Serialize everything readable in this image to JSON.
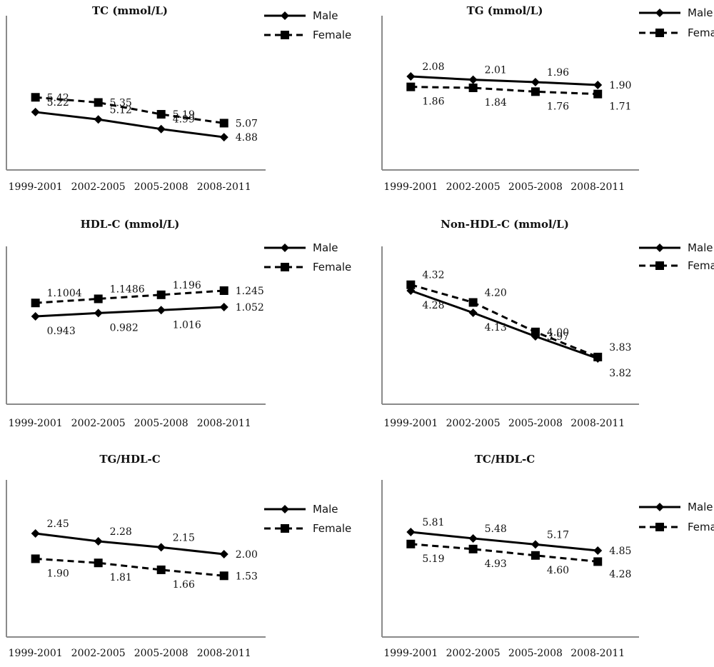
{
  "legend": {
    "male": "Male",
    "female": "Female"
  },
  "colors": {
    "line": "#000000",
    "axis": "#8a8a8a"
  },
  "chart_data": [
    {
      "type": "line",
      "title": "TC (mmol/L)",
      "categories": [
        "1999-2001",
        "2002-2005",
        "2005-2008",
        "2008-2011"
      ],
      "series": [
        {
          "name": "Male",
          "values": [
            5.22,
            5.12,
            4.99,
            4.88
          ],
          "labels": [
            "5.22",
            "5.12",
            "4.99",
            "4.88"
          ],
          "style": "solid",
          "marker": "diamond"
        },
        {
          "name": "Female",
          "values": [
            5.42,
            5.35,
            5.19,
            5.07
          ],
          "labels": [
            "5.42",
            "5.35",
            "5.19",
            "5.07"
          ],
          "style": "dashed",
          "marker": "square"
        }
      ],
      "legend_position": "top-right",
      "grid": false
    },
    {
      "type": "line",
      "title": "TG (mmol/L)",
      "categories": [
        "1999-2001",
        "2002-2005",
        "2005-2008",
        "2008-2011"
      ],
      "series": [
        {
          "name": "Male",
          "values": [
            2.08,
            2.01,
            1.96,
            1.9
          ],
          "labels": [
            "2.08",
            "2.01",
            "1.96",
            "1.90"
          ],
          "style": "solid",
          "marker": "diamond"
        },
        {
          "name": "Female",
          "values": [
            1.86,
            1.84,
            1.76,
            1.71
          ],
          "labels": [
            "1.86",
            "1.84",
            "1.76",
            "1.71"
          ],
          "style": "dashed",
          "marker": "square"
        }
      ],
      "legend_position": "top-right",
      "grid": false
    },
    {
      "type": "line",
      "title": "HDL-C (mmol/L)",
      "categories": [
        "1999-2001",
        "2002-2005",
        "2005-2008",
        "2008-2011"
      ],
      "series": [
        {
          "name": "Male",
          "values": [
            0.943,
            0.982,
            1.016,
            1.052
          ],
          "labels": [
            "0.943",
            "0.982",
            "1.016",
            "1.052"
          ],
          "style": "solid",
          "marker": "diamond"
        },
        {
          "name": "Female",
          "values": [
            1.1004,
            1.1486,
            1.196,
            1.245
          ],
          "labels": [
            "1.1004",
            "1.1486",
            "1.196",
            "1.245"
          ],
          "style": "dashed",
          "marker": "square"
        }
      ],
      "legend_position": "top-right",
      "grid": false
    },
    {
      "type": "line",
      "title": "Non-HDL-C (mmol/L)",
      "categories": [
        "1999-2001",
        "2002-2005",
        "2005-2008",
        "2008-2011"
      ],
      "series": [
        {
          "name": "Male",
          "values": [
            4.28,
            4.13,
            3.97,
            3.82
          ],
          "labels": [
            "4.28",
            "4.13",
            "3.97",
            "3.82"
          ],
          "style": "solid",
          "marker": "diamond"
        },
        {
          "name": "Female",
          "values": [
            4.32,
            4.2,
            4.0,
            3.83
          ],
          "labels": [
            "4.32",
            "4.20",
            "4.00",
            "3.83"
          ],
          "style": "dashed",
          "marker": "square"
        }
      ],
      "legend_position": "top-right",
      "grid": false
    },
    {
      "type": "line",
      "title": "TG/HDL-C",
      "categories": [
        "1999-2001",
        "2002-2005",
        "2005-2008",
        "2008-2011"
      ],
      "series": [
        {
          "name": "Male",
          "values": [
            2.45,
            2.28,
            2.15,
            2.0
          ],
          "labels": [
            "2.45",
            "2.28",
            "2.15",
            "2.00"
          ],
          "style": "solid",
          "marker": "diamond"
        },
        {
          "name": "Female",
          "values": [
            1.9,
            1.81,
            1.66,
            1.53
          ],
          "labels": [
            "1.90",
            "1.81",
            "1.66",
            "1.53"
          ],
          "style": "dashed",
          "marker": "square"
        }
      ],
      "legend_position": "right",
      "grid": false
    },
    {
      "type": "line",
      "title": "TC/HDL-C",
      "categories": [
        "1999-2001",
        "2002-2005",
        "2005-2008",
        "2008-2011"
      ],
      "series": [
        {
          "name": "Male",
          "values": [
            5.81,
            5.48,
            5.17,
            4.85
          ],
          "labels": [
            "5.81",
            "5.48",
            "5.17",
            "4.85"
          ],
          "style": "solid",
          "marker": "diamond"
        },
        {
          "name": "Female",
          "values": [
            5.19,
            4.93,
            4.6,
            4.28
          ],
          "labels": [
            "5.19",
            "4.93",
            "4.60",
            "4.28"
          ],
          "style": "dashed",
          "marker": "square"
        }
      ],
      "legend_position": "right",
      "grid": false
    }
  ]
}
